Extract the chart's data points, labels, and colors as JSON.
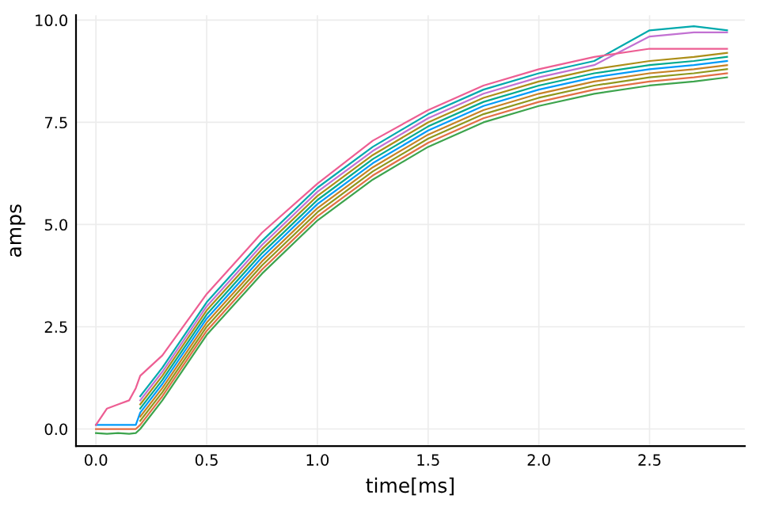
{
  "chart_data": {
    "type": "line",
    "xlabel": "time[ms]",
    "ylabel": "amps",
    "grid": true,
    "line_style": "solid",
    "xlim": [
      -0.09,
      2.93
    ],
    "ylim": [
      -0.42,
      10.12
    ],
    "xticks": [
      {
        "value": 0,
        "label": "0.0"
      },
      {
        "value": 0.5,
        "label": "0.5"
      },
      {
        "value": 1,
        "label": "1.0"
      },
      {
        "value": 1.5,
        "label": "1.5"
      },
      {
        "value": 2,
        "label": "2.0"
      },
      {
        "value": 2.5,
        "label": "2.5"
      }
    ],
    "yticks": [
      {
        "value": 0,
        "label": "0.0"
      },
      {
        "value": 2.5,
        "label": "2.5"
      },
      {
        "value": 5,
        "label": "5.0"
      },
      {
        "value": 7.5,
        "label": "7.5"
      },
      {
        "value": 10,
        "label": "10.0"
      }
    ],
    "x": [
      0,
      0.05,
      0.1,
      0.15,
      0.18,
      0.2,
      0.3,
      0.5,
      0.75,
      1.0,
      1.25,
      1.5,
      1.75,
      2.0,
      2.25,
      2.5,
      2.7,
      2.85
    ],
    "series": [
      {
        "color": "#009af9",
        "values": [
          0.1,
          0.1,
          0.1,
          0.1,
          0.1,
          0.4,
          1.1,
          2.7,
          4.2,
          5.5,
          6.5,
          7.3,
          7.9,
          8.3,
          8.6,
          8.8,
          8.9,
          9.0
        ]
      },
      {
        "color": "#e26f46",
        "values": [
          0,
          0,
          0,
          0,
          0,
          0.1,
          0.8,
          2.4,
          3.9,
          5.2,
          6.2,
          7.0,
          7.6,
          8.0,
          8.3,
          8.5,
          8.6,
          8.7
        ]
      },
      {
        "color": "#3da44d",
        "values": [
          -0.1,
          -0.12,
          -0.1,
          -0.12,
          -0.1,
          0.0,
          0.7,
          2.3,
          3.8,
          5.1,
          6.1,
          6.9,
          7.5,
          7.9,
          8.2,
          8.4,
          8.5,
          8.6
        ]
      },
      {
        "color": "#c271d2",
        "values": [
          null,
          null,
          null,
          null,
          null,
          0.7,
          1.4,
          3.0,
          4.5,
          5.8,
          6.8,
          7.6,
          8.2,
          8.6,
          8.9,
          9.6,
          9.7,
          9.7
        ]
      },
      {
        "color": "#ac8e18",
        "values": [
          null,
          null,
          null,
          null,
          null,
          0.6,
          1.3,
          2.9,
          4.4,
          5.7,
          6.7,
          7.5,
          8.1,
          8.5,
          8.8,
          9.0,
          9.1,
          9.2
        ]
      },
      {
        "color": "#00a9ad",
        "values": [
          null,
          null,
          null,
          null,
          null,
          0.8,
          1.5,
          3.1,
          4.6,
          5.9,
          6.9,
          7.7,
          8.3,
          8.7,
          9.0,
          9.75,
          9.85,
          9.75
        ]
      },
      {
        "color": "#ed5e93",
        "values": [
          0.1,
          0.5,
          0.6,
          0.7,
          1.0,
          1.3,
          1.8,
          3.3,
          4.8,
          6.0,
          7.05,
          7.8,
          8.4,
          8.8,
          9.1,
          9.3,
          9.3,
          9.3
        ]
      },
      {
        "color": "#c68225",
        "values": [
          null,
          null,
          null,
          null,
          null,
          0.3,
          1.0,
          2.6,
          4.1,
          5.4,
          6.4,
          7.2,
          7.8,
          8.2,
          8.5,
          8.7,
          8.8,
          8.9
        ]
      },
      {
        "color": "#00a98d",
        "values": [
          null,
          null,
          null,
          null,
          null,
          0.5,
          1.2,
          2.8,
          4.3,
          5.6,
          6.6,
          7.4,
          8.0,
          8.4,
          8.7,
          8.9,
          9.0,
          9.1
        ]
      },
      {
        "color": "#8e971d",
        "values": [
          null,
          null,
          null,
          null,
          null,
          0.2,
          0.9,
          2.5,
          4.0,
          5.3,
          6.3,
          7.1,
          7.7,
          8.1,
          8.4,
          8.6,
          8.7,
          8.8
        ]
      }
    ]
  }
}
